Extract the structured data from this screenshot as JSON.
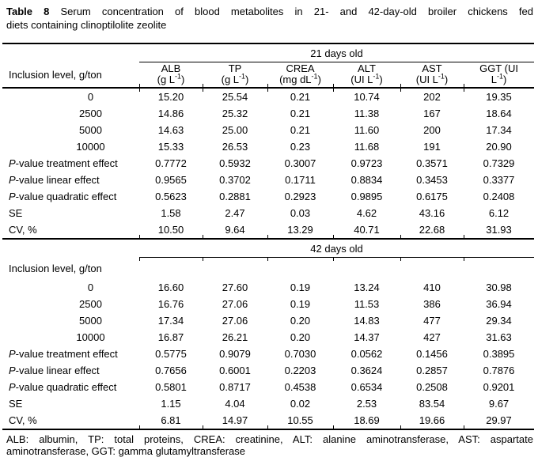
{
  "title": {
    "label": "Table 8",
    "line1_rest": " Serum concentration of blood metabolites in 21- and 42-day-old broiler chickens fed",
    "line2": "diets containing clinoptilolite zeolite"
  },
  "table": {
    "row_axis_label": "Inclusion level, g/ton",
    "columns": [
      {
        "name": "ALB",
        "unit": {
          "open": "(g L",
          "sup": "-1",
          "close": ")"
        }
      },
      {
        "name": "TP",
        "unit": {
          "open": "(g L",
          "sup": "-1",
          "close": ")"
        }
      },
      {
        "name": "CREA",
        "unit": {
          "open": "(mg dL",
          "sup": "-1",
          "close": ")"
        }
      },
      {
        "name": "ALT",
        "unit": {
          "open": "(UI L",
          "sup": "-1",
          "close": ")"
        }
      },
      {
        "name": "AST",
        "unit": {
          "open": "(UI L",
          "sup": "-1",
          "close": ")"
        }
      },
      {
        "name": "GGT (UI",
        "unit": {
          "open": "L",
          "sup": "-1",
          "close": ")"
        }
      }
    ],
    "sections": [
      {
        "age_header": "21 days old",
        "show_column_headers": true,
        "data_rows": [
          {
            "level": "0",
            "values": [
              "15.20",
              "25.54",
              "0.21",
              "10.74",
              "202",
              "19.35"
            ]
          },
          {
            "level": "2500",
            "values": [
              "14.86",
              "25.32",
              "0.21",
              "11.38",
              "167",
              "18.64"
            ]
          },
          {
            "level": "5000",
            "values": [
              "14.63",
              "25.00",
              "0.21",
              "11.60",
              "200",
              "17.34"
            ]
          },
          {
            "level": "10000",
            "values": [
              "15.33",
              "26.53",
              "0.23",
              "11.68",
              "191",
              "20.90"
            ]
          }
        ],
        "stat_rows": [
          {
            "italic_prefix": "P",
            "label": "-value treatment effect",
            "values": [
              "0.7772",
              "0.5932",
              "0.3007",
              "0.9723",
              "0.3571",
              "0.7329"
            ]
          },
          {
            "italic_prefix": "P",
            "label": "-value linear effect",
            "values": [
              "0.9565",
              "0.3702",
              "0.1711",
              "0.8834",
              "0.3453",
              "0.3377"
            ]
          },
          {
            "italic_prefix": "P",
            "label": "-value quadratic effect",
            "values": [
              "0.5623",
              "0.2881",
              "0.2923",
              "0.9895",
              "0.6175",
              "0.2408"
            ]
          },
          {
            "italic_prefix": "",
            "label": "SE",
            "values": [
              "1.58",
              "2.47",
              "0.03",
              "4.62",
              "43.16",
              "6.12"
            ]
          },
          {
            "italic_prefix": "",
            "label": "CV, %",
            "values": [
              "10.50",
              "9.64",
              "13.29",
              "40.71",
              "22.68",
              "31.93"
            ]
          }
        ]
      },
      {
        "age_header": "42 days old",
        "show_column_headers": false,
        "data_rows": [
          {
            "level": "0",
            "values": [
              "16.60",
              "27.60",
              "0.19",
              "13.24",
              "410",
              "30.98"
            ]
          },
          {
            "level": "2500",
            "values": [
              "16.76",
              "27.06",
              "0.19",
              "11.53",
              "386",
              "36.94"
            ]
          },
          {
            "level": "5000",
            "values": [
              "17.34",
              "27.06",
              "0.20",
              "14.83",
              "477",
              "29.34"
            ]
          },
          {
            "level": "10000",
            "values": [
              "16.87",
              "26.21",
              "0.20",
              "14.37",
              "427",
              "31.63"
            ]
          }
        ],
        "stat_rows": [
          {
            "italic_prefix": "P",
            "label": "-value treatment effect",
            "values": [
              "0.5775",
              "0.9079",
              "0.7030",
              "0.0562",
              "0.1456",
              "0.3895"
            ]
          },
          {
            "italic_prefix": "P",
            "label": "-value linear effect",
            "values": [
              "0.7656",
              "0.6001",
              "0.2203",
              "0.3624",
              "0.2857",
              "0.7876"
            ]
          },
          {
            "italic_prefix": "P",
            "label": "-value quadratic effect",
            "values": [
              "0.5801",
              "0.8717",
              "0.4538",
              "0.6534",
              "0.2508",
              "0.9201"
            ]
          },
          {
            "italic_prefix": "",
            "label": "SE",
            "values": [
              "1.15",
              "4.04",
              "0.02",
              "2.53",
              "83.54",
              "9.67"
            ]
          },
          {
            "italic_prefix": "",
            "label": "CV, %",
            "values": [
              "6.81",
              "14.97",
              "10.55",
              "18.69",
              "19.66",
              "29.97"
            ]
          }
        ]
      }
    ]
  },
  "footnote": {
    "line1": "ALB: albumin, TP: total proteins, CREA: creatinine, ALT: alanine aminotransferase, AST: aspartate",
    "line2": "aminotransferase, GGT: gamma glutamyltransferase"
  }
}
